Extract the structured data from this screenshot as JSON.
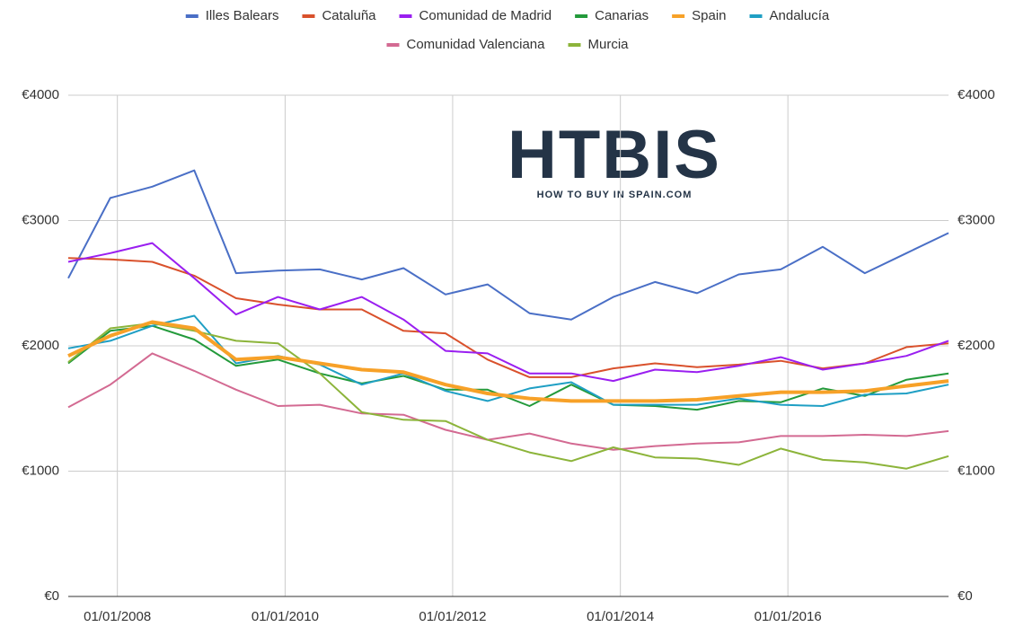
{
  "chart_data": {
    "type": "line",
    "logo": {
      "title": "HTBIS",
      "subtitle": "HOW TO BUY IN SPAIN.COM"
    },
    "x": [
      "01/06/2007",
      "01/12/2007",
      "01/06/2008",
      "01/12/2008",
      "01/06/2009",
      "01/12/2009",
      "01/06/2010",
      "01/12/2010",
      "01/06/2011",
      "01/12/2011",
      "01/06/2012",
      "01/12/2012",
      "01/06/2013",
      "01/12/2013",
      "01/06/2014",
      "01/12/2014",
      "01/06/2015",
      "01/12/2015",
      "01/06/2016",
      "01/12/2016",
      "01/06/2017",
      "01/12/2017"
    ],
    "xlim": [
      "01/06/2007",
      "01/12/2017"
    ],
    "xticks": [
      "01/01/2008",
      "01/01/2010",
      "01/01/2012",
      "01/01/2014",
      "01/01/2016"
    ],
    "ylim": [
      0,
      4000
    ],
    "yticks": [
      {
        "value": 0,
        "label": "€0"
      },
      {
        "value": 1000,
        "label": "€1000"
      },
      {
        "value": 2000,
        "label": "€2000"
      },
      {
        "value": 3000,
        "label": "€3000"
      },
      {
        "value": 4000,
        "label": "€4000"
      }
    ],
    "y2lim": [
      0,
      4000
    ],
    "y2ticks": [
      {
        "value": 0,
        "label": "€0"
      },
      {
        "value": 1000,
        "label": "€1000"
      },
      {
        "value": 2000,
        "label": "€2000"
      },
      {
        "value": 3000,
        "label": "€3000"
      },
      {
        "value": 4000,
        "label": "€4000"
      }
    ],
    "grid": true,
    "legend": "top",
    "series": [
      {
        "name": "Illes Balears",
        "color": "#4a6fc6",
        "values": [
          2540,
          3180,
          3270,
          3400,
          2580,
          2600,
          2610,
          2530,
          2620,
          2410,
          2490,
          2260,
          2210,
          2390,
          2510,
          2420,
          2570,
          2610,
          2790,
          2580,
          2740,
          2900
        ]
      },
      {
        "name": "Cataluña",
        "color": "#d9512c",
        "values": [
          2700,
          2690,
          2670,
          2560,
          2380,
          2330,
          2290,
          2290,
          2120,
          2100,
          1890,
          1750,
          1750,
          1820,
          1860,
          1830,
          1850,
          1880,
          1820,
          1860,
          1990,
          2020
        ]
      },
      {
        "name": "Comunidad de Madrid",
        "color": "#9a1ff0",
        "values": [
          2670,
          2740,
          2820,
          2540,
          2250,
          2390,
          2290,
          2390,
          2210,
          1960,
          1940,
          1780,
          1780,
          1720,
          1810,
          1790,
          1840,
          1910,
          1810,
          1860,
          1920,
          2040
        ]
      },
      {
        "name": "Canarias",
        "color": "#239a3b",
        "values": [
          1860,
          2120,
          2160,
          2050,
          1840,
          1890,
          1780,
          1700,
          1760,
          1650,
          1650,
          1520,
          1690,
          1530,
          1520,
          1490,
          1560,
          1550,
          1660,
          1600,
          1730,
          1780
        ]
      },
      {
        "name": "Spain",
        "color": "#f7a128",
        "values": [
          1920,
          2080,
          2190,
          2140,
          1890,
          1910,
          1860,
          1810,
          1790,
          1690,
          1620,
          1580,
          1560,
          1560,
          1560,
          1570,
          1600,
          1630,
          1630,
          1640,
          1680,
          1720
        ]
      },
      {
        "name": "Andalucía",
        "color": "#1f9fc4",
        "values": [
          1980,
          2040,
          2160,
          2240,
          1860,
          1920,
          1850,
          1690,
          1780,
          1640,
          1560,
          1660,
          1710,
          1530,
          1530,
          1530,
          1580,
          1530,
          1520,
          1610,
          1620,
          1690
        ]
      },
      {
        "name": "Comunidad Valenciana",
        "color": "#d36a92",
        "values": [
          1510,
          1690,
          1940,
          1800,
          1650,
          1520,
          1530,
          1460,
          1450,
          1330,
          1250,
          1300,
          1220,
          1170,
          1200,
          1220,
          1230,
          1280,
          1280,
          1290,
          1280,
          1320
        ]
      },
      {
        "name": "Murcia",
        "color": "#8cb43a",
        "values": [
          1870,
          2140,
          2180,
          2120,
          2040,
          2020,
          1780,
          1470,
          1410,
          1400,
          1250,
          1150,
          1080,
          1190,
          1110,
          1100,
          1050,
          1180,
          1090,
          1070,
          1020,
          1120
        ]
      }
    ]
  }
}
